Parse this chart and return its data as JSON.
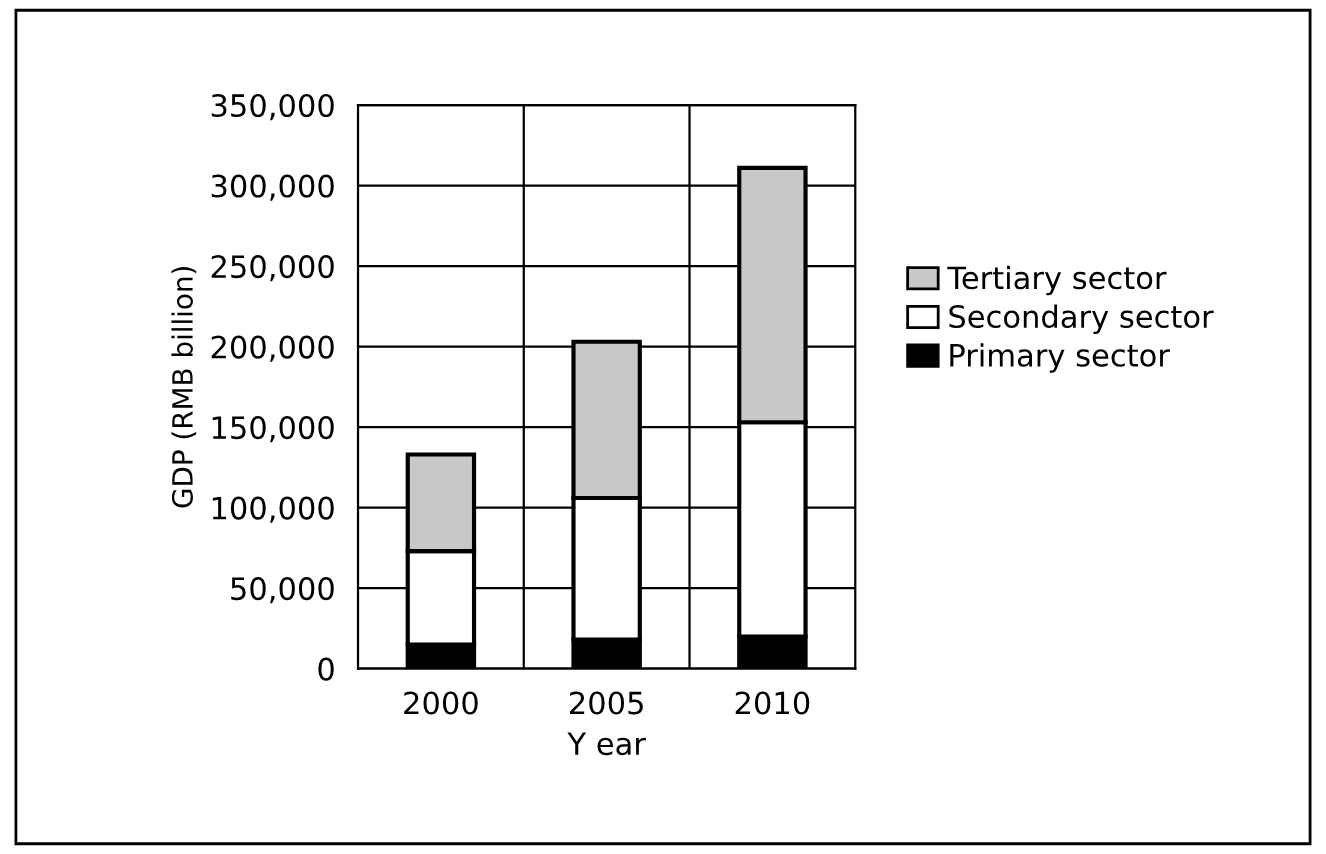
{
  "chart_data": {
    "type": "bar",
    "stacked": true,
    "xlabel": "Y ear",
    "ylabel": "GDP (RMB billion)",
    "categories": [
      "2000",
      "2005",
      "2010"
    ],
    "series": [
      {
        "name": "Primary sector",
        "color": "#000000",
        "values": [
          15000,
          18000,
          20000
        ]
      },
      {
        "name": "Secondary sector",
        "color": "#ffffff",
        "values": [
          58000,
          88000,
          133000
        ]
      },
      {
        "name": "Tertiary sector",
        "color": "#c8c8c8",
        "values": [
          60000,
          97000,
          158000
        ]
      }
    ],
    "ylim": [
      0,
      350000
    ],
    "yticks": [
      {
        "value": 0,
        "label": "0"
      },
      {
        "value": 50000,
        "label": "50,000"
      },
      {
        "value": 100000,
        "label": "100,000"
      },
      {
        "value": 150000,
        "label": "150,000"
      },
      {
        "value": 200000,
        "label": "200,000"
      },
      {
        "value": 250000,
        "label": "250,000"
      },
      {
        "value": 300000,
        "label": "300,000"
      },
      {
        "value": 350000,
        "label": "350,000"
      }
    ],
    "grid": true,
    "legend": "right"
  }
}
